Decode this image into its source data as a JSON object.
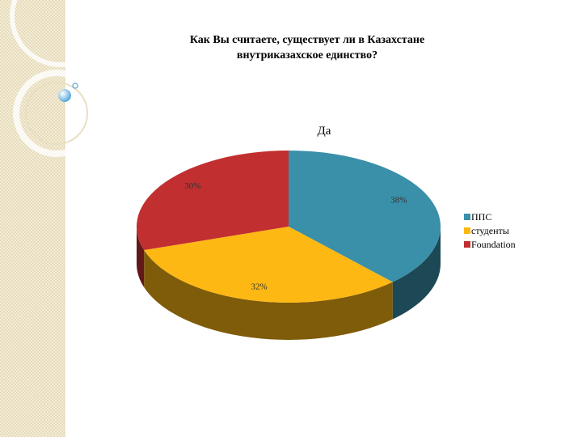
{
  "chart_data": {
    "type": "pie3d",
    "title": "Как Вы считаете, существует ли в Казахстане внутриказахское единство?",
    "subtitle": "Да",
    "categories": [
      "ППС",
      "студенты",
      "Foundation"
    ],
    "values": [
      38,
      32,
      30
    ],
    "value_labels": [
      "38%",
      "32%",
      "30%"
    ],
    "colors": [
      "#3a8fa9",
      "#fdb813",
      "#c12f30"
    ],
    "legend": "right"
  }
}
